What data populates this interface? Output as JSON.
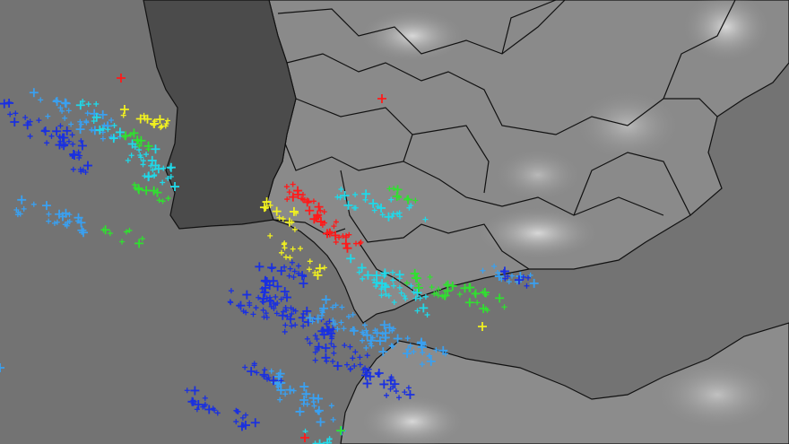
{
  "map": {
    "sea_color": "#737373",
    "portugal_color": "#4b4b4b",
    "spain_color": "#8a8a8a",
    "morocco_color": "#8c8c8c",
    "border_color": "#111111"
  },
  "lightning_colors": {
    "red": "#ff1a1a",
    "yellow": "#f0f020",
    "green": "#30e030",
    "cyan": "#20d8e8",
    "light_blue": "#3aa0f0",
    "blue": "#1a30e0"
  }
}
